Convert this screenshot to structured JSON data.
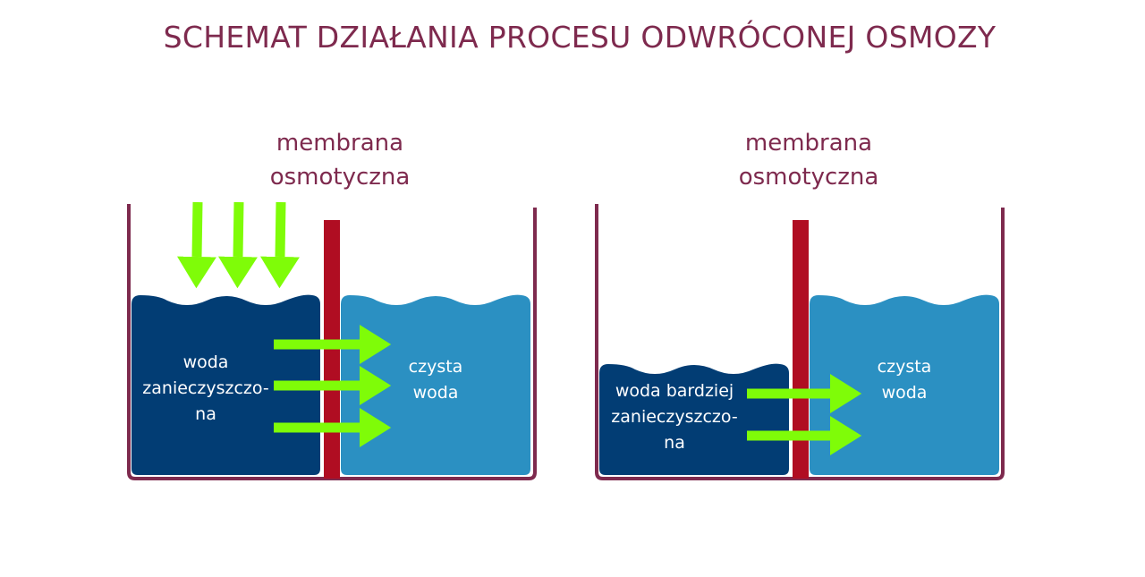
{
  "title": "SCHEMAT DZIAŁANIA PROCESU ODWRÓCONEJ OSMOZY",
  "colors": {
    "title": "#7e2a4e",
    "container": "#7e2a4e",
    "membrane": "#b00d22",
    "dirty_water": "#023d74",
    "clean_water": "#2b90c2",
    "arrow": "#7ffc08"
  },
  "left_panel": {
    "membrane_label_1": "membrana",
    "membrane_label_2": "osmotyczna",
    "dirty_label": [
      "woda",
      "zanieczyszczo-",
      "na"
    ],
    "clean_label": [
      "czysta",
      "woda"
    ]
  },
  "right_panel": {
    "membrane_label_1": "membrana",
    "membrane_label_2": "osmotyczna",
    "dirty_label": [
      "woda bardziej",
      "zanieczyszczo-",
      "na"
    ],
    "clean_label": [
      "czysta",
      "woda"
    ]
  }
}
